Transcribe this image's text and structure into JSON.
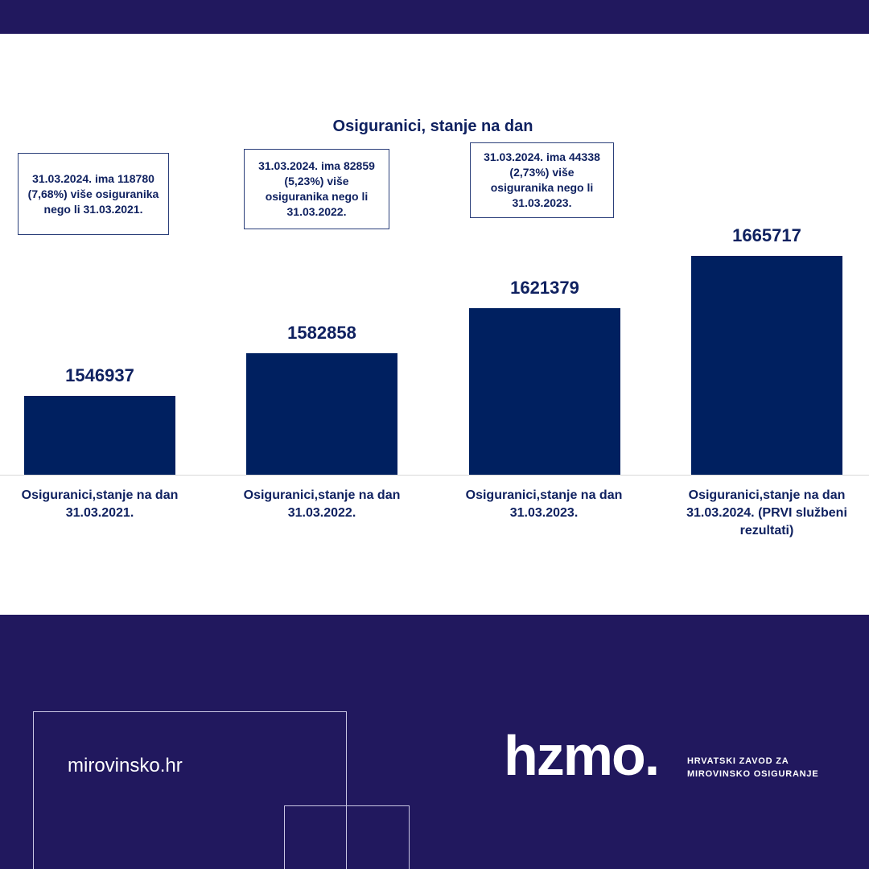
{
  "chart_data": {
    "type": "bar",
    "title": "Osiguranici, stanje na dan",
    "categories": [
      "Osiguranici,stanje na dan 31.03.2021.",
      "Osiguranici,stanje na dan 31.03.2022.",
      "Osiguranici,stanje na dan 31.03.2023.",
      "Osiguranici,stanje na dan 31.03.2024. (PRVI službeni rezultati)"
    ],
    "values": [
      1546937,
      1582858,
      1621379,
      1665717
    ],
    "value_labels": [
      "1546937",
      "1582858",
      "1621379",
      "1665717"
    ],
    "ylim": [
      1480000,
      1700000
    ],
    "grid": false,
    "bar_color": "#002060",
    "annotations": [
      "31.03.2024. ima 118780 (7,68%) više osiguranika nego li 31.03.2021.",
      "31.03.2024. ima 82859  (5,23%) više osiguranika nego li 31.03.2022.",
      "31.03.2024. ima 44338 (2,73%) više osiguranika nego li 31.03.2023."
    ]
  },
  "footer": {
    "website": "mirovinsko.hr",
    "logo": "hzmo.",
    "logo_subtitle_line1": "HRVATSKI ZAVOD ZA",
    "logo_subtitle_line2": "MIROVINSKO OSIGURANJE"
  },
  "colors": {
    "brand_navy": "#21185e",
    "bar": "#002060",
    "text": "#0f2160"
  }
}
